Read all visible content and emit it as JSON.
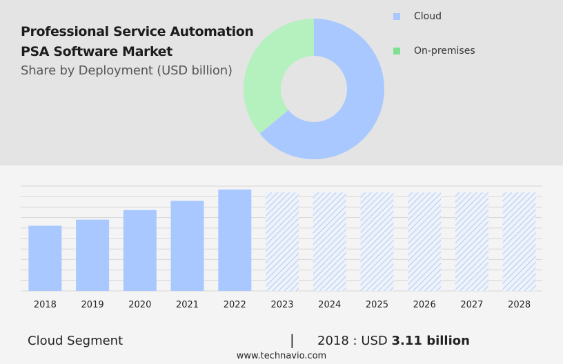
{
  "header": {
    "title_line1": "Professional Service Automation",
    "title_line2": "PSA Software Market",
    "subtitle": "Share by Deployment (USD billion)"
  },
  "legend": [
    {
      "label": "Cloud",
      "color": "#a9c8ff"
    },
    {
      "label": "On-premises",
      "color": "#7ee08f"
    }
  ],
  "chart_data": [
    {
      "type": "pie",
      "title": "Share by Deployment (USD billion)",
      "categories": [
        "Cloud",
        "On-premises"
      ],
      "values": [
        64,
        36
      ],
      "colors": [
        "#a9c8ff",
        "#b5f0bf"
      ],
      "donut": true
    },
    {
      "type": "bar",
      "categories": [
        "2018",
        "2019",
        "2020",
        "2021",
        "2022",
        "2023",
        "2024",
        "2025",
        "2026",
        "2027",
        "2028"
      ],
      "values": [
        3.11,
        3.4,
        3.86,
        4.3,
        4.84,
        4.7,
        4.7,
        4.7,
        4.7,
        4.7,
        4.7
      ],
      "forecast_from": "2023",
      "ylim": [
        0,
        5
      ],
      "grid": true,
      "colors": {
        "actual": "#a9c8ff",
        "forecast": "#c9d9f5"
      }
    }
  ],
  "footer": {
    "segment": "Cloud Segment",
    "separator": "|",
    "stat_prefix": "2018 : USD",
    "stat_value": "3.11 billion",
    "website": "www.technavio.com"
  }
}
